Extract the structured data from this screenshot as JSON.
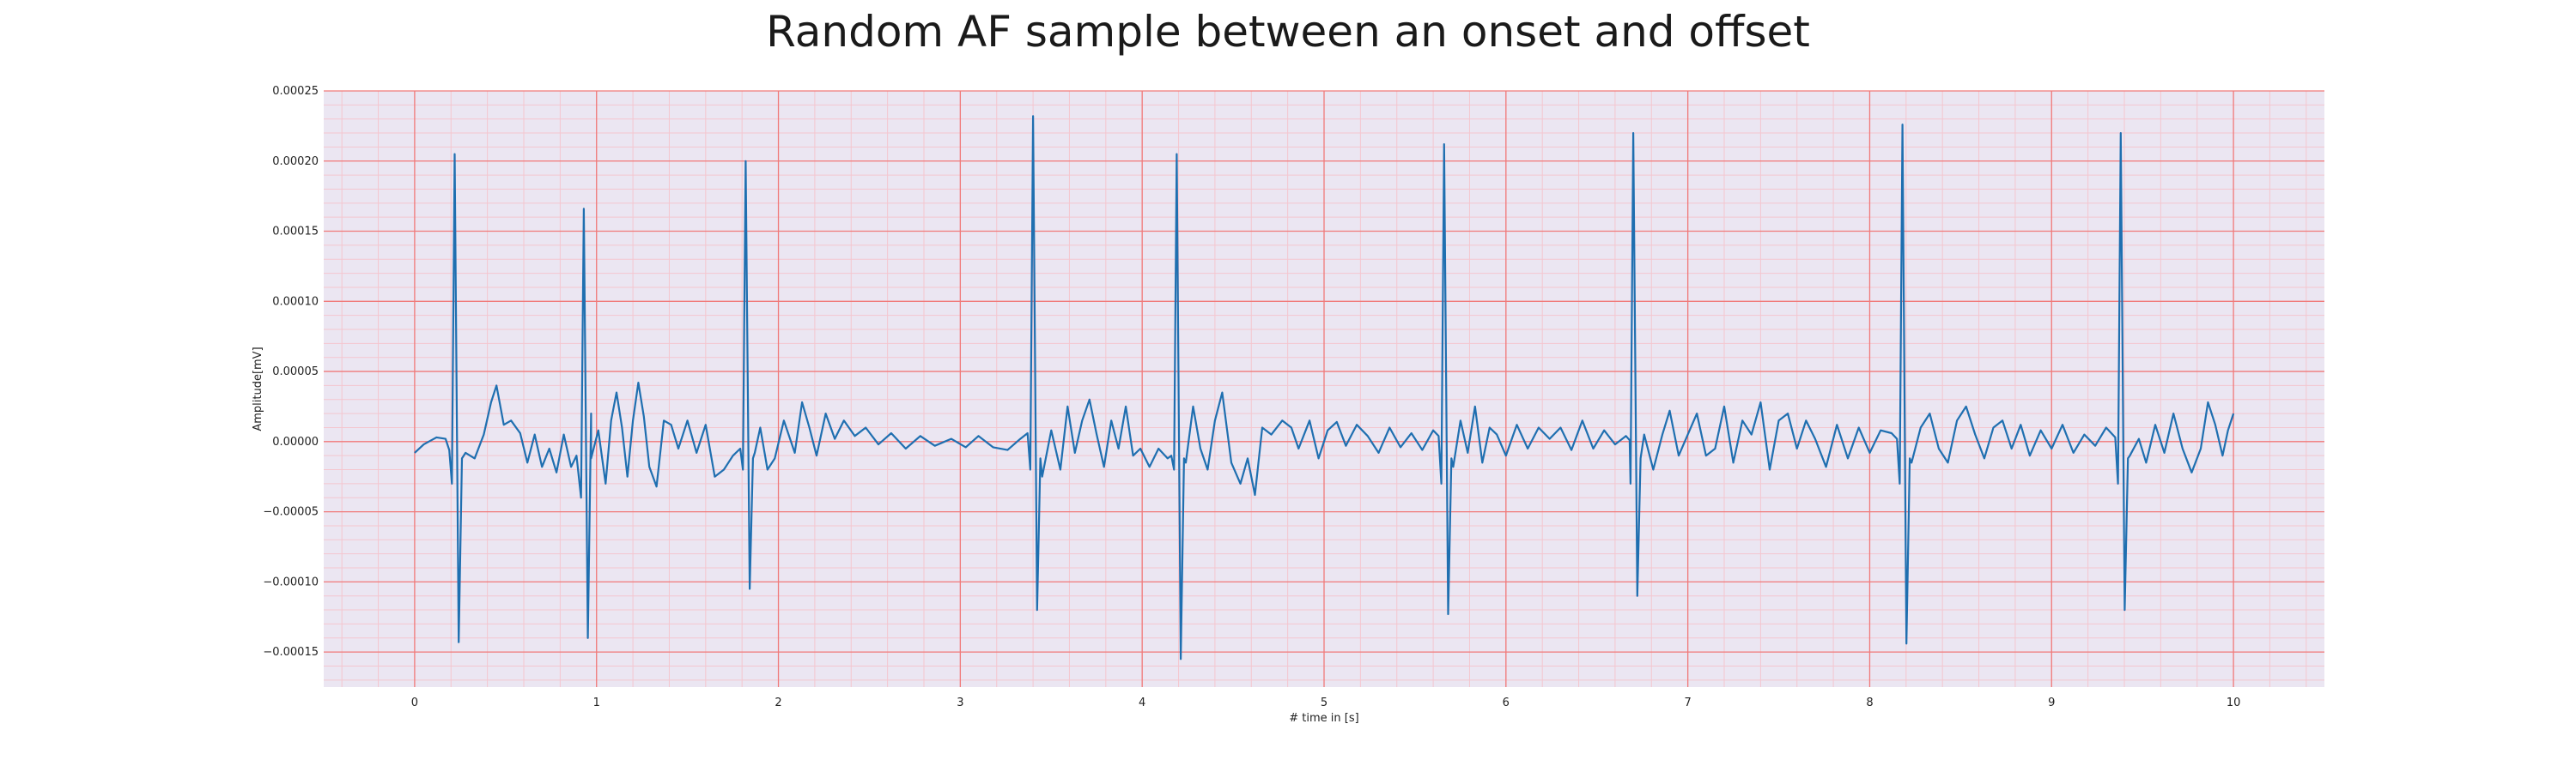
{
  "chart_data": {
    "type": "line",
    "title": "Random AF sample between an onset and offset",
    "xlabel": "# time in [s]",
    "ylabel": "Amplitude[mV]",
    "xlim": [
      -0.5,
      10.5
    ],
    "ylim": [
      -0.000175,
      0.00025
    ],
    "x_ticks": [
      0,
      1,
      2,
      3,
      4,
      5,
      6,
      7,
      8,
      9,
      10
    ],
    "y_ticks": [
      -0.00015,
      -0.0001,
      -5e-05,
      0,
      5e-05,
      0.0001,
      0.00015,
      0.0002,
      0.00025
    ],
    "x_tick_labels": [
      "0",
      "1",
      "2",
      "3",
      "4",
      "5",
      "6",
      "7",
      "8",
      "9",
      "10"
    ],
    "y_tick_labels": [
      "−0.00015",
      "−0.00010",
      "−0.00005",
      "0.00000",
      "0.00005",
      "0.00010",
      "0.00015",
      "0.00020",
      "0.00025"
    ],
    "grid": {
      "major_color": "#f07a7a",
      "minor_color": "#f4c6cf",
      "background": "#ebe6f2",
      "minor_divisions": 5
    },
    "line_color": "#1f6fb0",
    "duration_s": 10,
    "beats": [
      {
        "t": 0.22,
        "r": 0.000205,
        "q": -3e-05,
        "s": -0.000143
      },
      {
        "t": 0.93,
        "r": 0.000166,
        "q": -4e-05,
        "s": -0.00014
      },
      {
        "t": 1.82,
        "r": 0.0002,
        "q": -2e-05,
        "s": -0.000105
      },
      {
        "t": 3.4,
        "r": 0.000232,
        "q": -2e-05,
        "s": -0.00012
      },
      {
        "t": 4.19,
        "r": 0.000205,
        "q": -2e-05,
        "s": -0.000155
      },
      {
        "t": 5.66,
        "r": 0.000212,
        "q": -3e-05,
        "s": -0.000123
      },
      {
        "t": 6.7,
        "r": 0.00022,
        "q": -3e-05,
        "s": -0.00011
      },
      {
        "t": 8.18,
        "r": 0.000226,
        "q": -3e-05,
        "s": -0.000144
      },
      {
        "t": 9.38,
        "r": 0.00022,
        "q": -3e-05,
        "s": -0.00012
      }
    ],
    "baseline_samples": [
      [
        0.0,
        -8e-06
      ],
      [
        0.05,
        -2e-06
      ],
      [
        0.12,
        3e-06
      ],
      [
        0.17,
        2e-06
      ],
      [
        0.19,
        -6e-06
      ],
      [
        0.28,
        -8e-06
      ],
      [
        0.33,
        -1.2e-05
      ],
      [
        0.38,
        5e-06
      ],
      [
        0.42,
        2.8e-05
      ],
      [
        0.45,
        4e-05
      ],
      [
        0.49,
        1.2e-05
      ],
      [
        0.53,
        1.5e-05
      ],
      [
        0.58,
        6e-06
      ],
      [
        0.62,
        -1.5e-05
      ],
      [
        0.66,
        5e-06
      ],
      [
        0.7,
        -1.8e-05
      ],
      [
        0.74,
        -5e-06
      ],
      [
        0.78,
        -2.2e-05
      ],
      [
        0.82,
        5e-06
      ],
      [
        0.86,
        -1.8e-05
      ],
      [
        0.89,
        -1e-05
      ],
      [
        0.97,
        2e-05
      ],
      [
        1.01,
        8e-06
      ],
      [
        1.05,
        -3e-05
      ],
      [
        1.08,
        1.5e-05
      ],
      [
        1.11,
        3.5e-05
      ],
      [
        1.14,
        1e-05
      ],
      [
        1.17,
        -2.5e-05
      ],
      [
        1.2,
        1.5e-05
      ],
      [
        1.23,
        4.2e-05
      ],
      [
        1.26,
        1.8e-05
      ],
      [
        1.29,
        -1.8e-05
      ],
      [
        1.33,
        -3.2e-05
      ],
      [
        1.37,
        1.5e-05
      ],
      [
        1.41,
        1.2e-05
      ],
      [
        1.45,
        -5e-06
      ],
      [
        1.5,
        1.5e-05
      ],
      [
        1.55,
        -8e-06
      ],
      [
        1.6,
        1.2e-05
      ],
      [
        1.65,
        -2.5e-05
      ],
      [
        1.7,
        -2e-05
      ],
      [
        1.75,
        -1e-05
      ],
      [
        1.79,
        -5e-06
      ],
      [
        1.87,
        -8e-06
      ],
      [
        1.9,
        1e-05
      ],
      [
        1.94,
        -2e-05
      ],
      [
        1.98,
        -1.2e-05
      ],
      [
        2.03,
        1.5e-05
      ],
      [
        2.09,
        -8e-06
      ],
      [
        2.13,
        2.8e-05
      ],
      [
        2.17,
        1e-05
      ],
      [
        2.21,
        -1e-05
      ],
      [
        2.26,
        2e-05
      ],
      [
        2.31,
        2e-06
      ],
      [
        2.36,
        1.5e-05
      ],
      [
        2.42,
        4e-06
      ],
      [
        2.48,
        1e-05
      ],
      [
        2.55,
        -2e-06
      ],
      [
        2.62,
        6e-06
      ],
      [
        2.7,
        -5e-06
      ],
      [
        2.78,
        4e-06
      ],
      [
        2.86,
        -3e-06
      ],
      [
        2.95,
        2e-06
      ],
      [
        3.03,
        -4e-06
      ],
      [
        3.1,
        4e-06
      ],
      [
        3.18,
        -4e-06
      ],
      [
        3.26,
        -6e-06
      ],
      [
        3.33,
        2e-06
      ],
      [
        3.37,
        6e-06
      ],
      [
        3.45,
        -2.5e-05
      ],
      [
        3.5,
        8e-06
      ],
      [
        3.55,
        -2e-05
      ],
      [
        3.59,
        2.5e-05
      ],
      [
        3.63,
        -8e-06
      ],
      [
        3.67,
        1.5e-05
      ],
      [
        3.71,
        3e-05
      ],
      [
        3.75,
        5e-06
      ],
      [
        3.79,
        -1.8e-05
      ],
      [
        3.83,
        1.5e-05
      ],
      [
        3.87,
        -5e-06
      ],
      [
        3.91,
        2.5e-05
      ],
      [
        3.95,
        -1e-05
      ],
      [
        3.99,
        -5e-06
      ],
      [
        4.04,
        -1.8e-05
      ],
      [
        4.09,
        -5e-06
      ],
      [
        4.14,
        -1.2e-05
      ],
      [
        4.16,
        -1e-05
      ],
      [
        4.24,
        -1.5e-05
      ],
      [
        4.28,
        2.5e-05
      ],
      [
        4.32,
        -5e-06
      ],
      [
        4.36,
        -2e-05
      ],
      [
        4.4,
        1.5e-05
      ],
      [
        4.44,
        3.5e-05
      ],
      [
        4.49,
        -1.5e-05
      ],
      [
        4.54,
        -3e-05
      ],
      [
        4.58,
        -1.2e-05
      ],
      [
        4.62,
        -3.8e-05
      ],
      [
        4.66,
        1e-05
      ],
      [
        4.71,
        5e-06
      ],
      [
        4.77,
        1.5e-05
      ],
      [
        4.82,
        1e-05
      ],
      [
        4.86,
        -5e-06
      ],
      [
        4.92,
        1.5e-05
      ],
      [
        4.97,
        -1.2e-05
      ],
      [
        5.02,
        8e-06
      ],
      [
        5.07,
        1.4e-05
      ],
      [
        5.12,
        -3e-06
      ],
      [
        5.18,
        1.2e-05
      ],
      [
        5.24,
        4e-06
      ],
      [
        5.3,
        -8e-06
      ],
      [
        5.36,
        1e-05
      ],
      [
        5.42,
        -4e-06
      ],
      [
        5.48,
        6e-06
      ],
      [
        5.54,
        -6e-06
      ],
      [
        5.6,
        8e-06
      ],
      [
        5.63,
        4e-06
      ],
      [
        5.71,
        -1.8e-05
      ],
      [
        5.75,
        1.5e-05
      ],
      [
        5.79,
        -8e-06
      ],
      [
        5.83,
        2.5e-05
      ],
      [
        5.87,
        -1.5e-05
      ],
      [
        5.91,
        1e-05
      ],
      [
        5.95,
        5e-06
      ],
      [
        6.0,
        -1e-05
      ],
      [
        6.06,
        1.2e-05
      ],
      [
        6.12,
        -5e-06
      ],
      [
        6.18,
        1e-05
      ],
      [
        6.24,
        2e-06
      ],
      [
        6.3,
        1e-05
      ],
      [
        6.36,
        -6e-06
      ],
      [
        6.42,
        1.5e-05
      ],
      [
        6.48,
        -5e-06
      ],
      [
        6.54,
        8e-06
      ],
      [
        6.6,
        -2e-06
      ],
      [
        6.66,
        4e-06
      ],
      [
        6.68,
        1e-06
      ],
      [
        6.76,
        5e-06
      ],
      [
        6.81,
        -2e-05
      ],
      [
        6.86,
        5e-06
      ],
      [
        6.9,
        2.2e-05
      ],
      [
        6.95,
        -1e-05
      ],
      [
        7.0,
        5e-06
      ],
      [
        7.05,
        2e-05
      ],
      [
        7.1,
        -1e-05
      ],
      [
        7.15,
        -5e-06
      ],
      [
        7.2,
        2.5e-05
      ],
      [
        7.25,
        -1.5e-05
      ],
      [
        7.3,
        1.5e-05
      ],
      [
        7.35,
        5e-06
      ],
      [
        7.4,
        2.8e-05
      ],
      [
        7.45,
        -2e-05
      ],
      [
        7.5,
        1.5e-05
      ],
      [
        7.55,
        2e-05
      ],
      [
        7.6,
        -5e-06
      ],
      [
        7.65,
        1.5e-05
      ],
      [
        7.7,
        2e-06
      ],
      [
        7.76,
        -1.8e-05
      ],
      [
        7.82,
        1.2e-05
      ],
      [
        7.88,
        -1.2e-05
      ],
      [
        7.94,
        1e-05
      ],
      [
        8.0,
        -8e-06
      ],
      [
        8.06,
        8e-06
      ],
      [
        8.12,
        6e-06
      ],
      [
        8.15,
        2e-06
      ],
      [
        8.23,
        -1.5e-05
      ],
      [
        8.28,
        1e-05
      ],
      [
        8.33,
        2e-05
      ],
      [
        8.38,
        -5e-06
      ],
      [
        8.43,
        -1.5e-05
      ],
      [
        8.48,
        1.5e-05
      ],
      [
        8.53,
        2.5e-05
      ],
      [
        8.58,
        5e-06
      ],
      [
        8.63,
        -1.2e-05
      ],
      [
        8.68,
        1e-05
      ],
      [
        8.73,
        1.5e-05
      ],
      [
        8.78,
        -5e-06
      ],
      [
        8.83,
        1.2e-05
      ],
      [
        8.88,
        -1e-05
      ],
      [
        8.94,
        8e-06
      ],
      [
        9.0,
        -5e-06
      ],
      [
        9.06,
        1.2e-05
      ],
      [
        9.12,
        -8e-06
      ],
      [
        9.18,
        5e-06
      ],
      [
        9.24,
        -3e-06
      ],
      [
        9.3,
        1e-05
      ],
      [
        9.35,
        3e-06
      ],
      [
        9.43,
        -1e-05
      ],
      [
        9.48,
        2e-06
      ],
      [
        9.52,
        -1.5e-05
      ],
      [
        9.57,
        1.2e-05
      ],
      [
        9.62,
        -8e-06
      ],
      [
        9.67,
        2e-05
      ],
      [
        9.72,
        -5e-06
      ],
      [
        9.77,
        -2.2e-05
      ],
      [
        9.82,
        -5e-06
      ],
      [
        9.86,
        2.8e-05
      ],
      [
        9.9,
        1.2e-05
      ],
      [
        9.94,
        -1e-05
      ],
      [
        9.97,
        8e-06
      ],
      [
        10.0,
        2e-05
      ]
    ]
  }
}
